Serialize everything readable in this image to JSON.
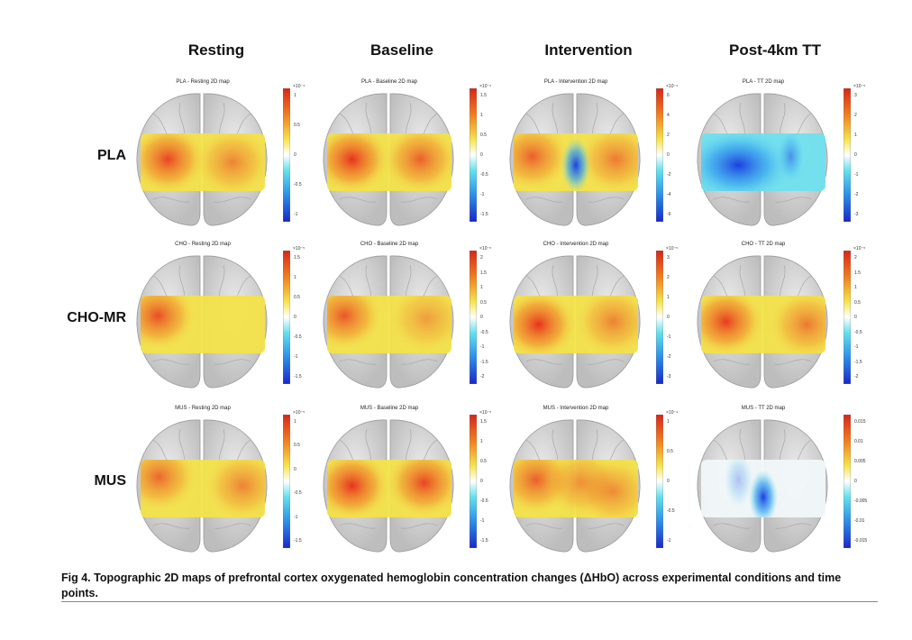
{
  "columns": [
    "Resting",
    "Baseline",
    "Intervention",
    "Post-4km TT"
  ],
  "rows": [
    "PLA",
    "CHO-MR",
    "MUS"
  ],
  "panels": [
    {
      "title": "PLA - Resting 2D map",
      "exp": "×10⁻⁴",
      "ticks": [
        "1",
        "0.5",
        "0",
        "-0.5",
        "-1"
      ],
      "pattern": "warm",
      "hot": [
        [
          0.22,
          0.45,
          0.9
        ],
        [
          0.74,
          0.5,
          0.55
        ]
      ],
      "cool": []
    },
    {
      "title": "PLA - Baseline 2D map",
      "exp": "×10⁻⁵",
      "ticks": [
        "1.5",
        "1",
        "0.5",
        "0",
        "-0.5",
        "-1",
        "-1.5"
      ],
      "pattern": "warm",
      "hot": [
        [
          0.2,
          0.45,
          1.0
        ],
        [
          0.75,
          0.45,
          0.75
        ]
      ],
      "cool": []
    },
    {
      "title": "PLA - Intervention 2D map",
      "exp": "×10⁻⁴",
      "ticks": [
        "6",
        "4",
        "2",
        "0",
        "-2",
        "-4",
        "-6"
      ],
      "pattern": "warm",
      "hot": [
        [
          0.15,
          0.4,
          0.75
        ],
        [
          0.82,
          0.45,
          0.6
        ]
      ],
      "cool": [
        [
          0.5,
          0.55,
          1.0
        ]
      ]
    },
    {
      "title": "PLA - TT 2D map",
      "exp": "×10⁻⁵",
      "ticks": [
        "3",
        "2",
        "1",
        "0",
        "-1",
        "-2",
        "-3"
      ],
      "pattern": "cold",
      "hot": [],
      "cool": [
        [
          0.3,
          0.55,
          1.0
        ],
        [
          0.72,
          0.4,
          0.5
        ]
      ]
    },
    {
      "title": "CHO - Resting 2D map",
      "exp": "×10⁻⁵",
      "ticks": [
        "1.5",
        "1",
        "0.5",
        "0",
        "-0.5",
        "-1",
        "-1.5"
      ],
      "pattern": "warm",
      "hot": [
        [
          0.14,
          0.35,
          0.85
        ]
      ],
      "cool": []
    },
    {
      "title": "CHO - Baseline 2D map",
      "exp": "×10⁻⁵",
      "ticks": [
        "2",
        "1.5",
        "1",
        "0.5",
        "0",
        "-0.5",
        "-1",
        "-1.5",
        "-2"
      ],
      "pattern": "warm",
      "hot": [
        [
          0.14,
          0.35,
          0.8
        ],
        [
          0.8,
          0.4,
          0.4
        ]
      ],
      "cool": []
    },
    {
      "title": "CHO - Intervention 2D map",
      "exp": "×10⁻⁵",
      "ticks": [
        "3",
        "2",
        "1",
        "0",
        "-1",
        "-2",
        "-3"
      ],
      "pattern": "warm",
      "hot": [
        [
          0.2,
          0.5,
          1.0
        ],
        [
          0.8,
          0.45,
          0.55
        ]
      ],
      "cool": []
    },
    {
      "title": "CHO - TT 2D map",
      "exp": "×10⁻⁵",
      "ticks": [
        "2",
        "1.5",
        "1",
        "0.5",
        "0",
        "-0.5",
        "-1",
        "-1.5",
        "-2"
      ],
      "pattern": "warm",
      "hot": [
        [
          0.2,
          0.45,
          0.95
        ],
        [
          0.85,
          0.5,
          0.6
        ]
      ],
      "cool": []
    },
    {
      "title": "MUS - Resting 2D map",
      "exp": "×10⁻⁵",
      "ticks": [
        "1",
        "0.5",
        "0",
        "-0.5",
        "-1",
        "-1.5"
      ],
      "pattern": "warm",
      "hot": [
        [
          0.15,
          0.3,
          0.7
        ],
        [
          0.82,
          0.45,
          0.55
        ]
      ],
      "cool": []
    },
    {
      "title": "MUS - Baseline 2D map",
      "exp": "×10⁻⁵",
      "ticks": [
        "1.5",
        "1",
        "0.5",
        "0",
        "-0.5",
        "-1",
        "-1.5"
      ],
      "pattern": "warm",
      "hot": [
        [
          0.2,
          0.45,
          1.0
        ],
        [
          0.78,
          0.4,
          0.9
        ]
      ],
      "cool": []
    },
    {
      "title": "MUS - Intervention 2D map",
      "exp": "×10⁻⁴",
      "ticks": [
        "1",
        "0.5",
        "0",
        "-0.5",
        "-1"
      ],
      "pattern": "warm",
      "hot": [
        [
          0.18,
          0.35,
          0.75
        ],
        [
          0.55,
          0.4,
          0.5
        ],
        [
          0.8,
          0.55,
          0.5
        ]
      ],
      "cool": []
    },
    {
      "title": "MUS - TT 2D map",
      "exp": "",
      "ticks": [
        "0.015",
        "0.01",
        "0.005",
        "0",
        "-0.005",
        "-0.01",
        "-0.015"
      ],
      "pattern": "pale",
      "hot": [],
      "cool": [
        [
          0.5,
          0.65,
          1.0
        ],
        [
          0.3,
          0.35,
          0.3
        ]
      ]
    }
  ],
  "caption": "Fig 4.  Topographic 2D maps of prefrontal cortex oxygenated hemoglobin concentration changes (ΔHbO) across experimental conditions and time points."
}
